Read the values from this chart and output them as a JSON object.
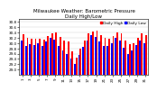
{
  "title": "Milwaukee Weather: Barometric Pressure\nDaily High/Low",
  "title_fontsize": 4.0,
  "background_color": "#ffffff",
  "bar_color_high": "#ff0000",
  "bar_color_low": "#0000ff",
  "ylim": [
    28.8,
    30.9
  ],
  "yticks": [
    29.0,
    29.2,
    29.4,
    29.6,
    29.8,
    30.0,
    30.2,
    30.4,
    30.6,
    30.8
  ],
  "highs": [
    30.32,
    30.18,
    30.15,
    30.14,
    30.17,
    30.13,
    30.26,
    30.35,
    30.4,
    30.22,
    30.1,
    30.05,
    29.7,
    29.45,
    29.8,
    30.1,
    30.35,
    30.42,
    30.45,
    30.3,
    30.2,
    30.15,
    30.25,
    30.4,
    30.35,
    30.1,
    29.95,
    30.0,
    30.2,
    30.35,
    30.28
  ],
  "lows": [
    30.1,
    29.9,
    29.95,
    29.92,
    29.98,
    29.88,
    30.05,
    30.18,
    30.12,
    29.9,
    29.72,
    29.6,
    29.4,
    29.2,
    29.55,
    29.85,
    30.1,
    30.28,
    30.22,
    30.05,
    29.9,
    29.88,
    30.0,
    30.2,
    30.1,
    29.82,
    29.6,
    29.72,
    29.92,
    30.08,
    30.0
  ],
  "grid_color": "#cccccc",
  "legend_high": "Daily High",
  "legend_low": "Daily Low",
  "legend_fontsize": 3.2,
  "tick_fontsize": 3.0,
  "bar_width": 0.4
}
